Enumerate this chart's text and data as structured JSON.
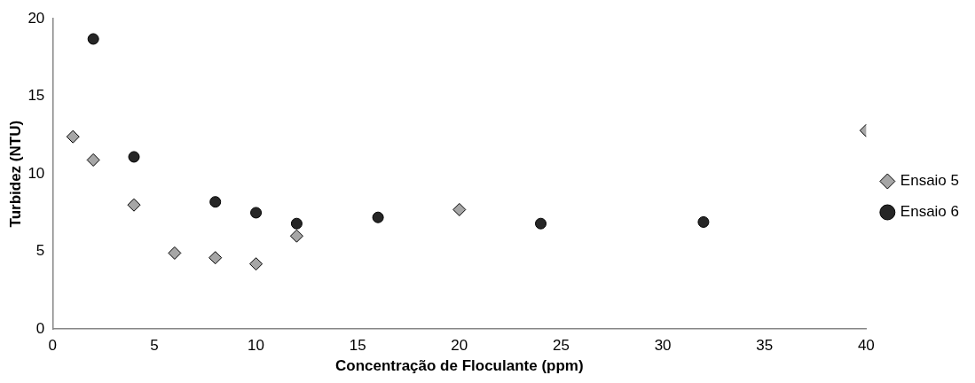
{
  "chart_data": {
    "type": "scatter",
    "xlabel": "Concentração de Floculante (ppm)",
    "ylabel": "Turbidez (NTU)",
    "xlim": [
      0,
      40
    ],
    "xticks": [
      0,
      5,
      10,
      15,
      20,
      25,
      30,
      35,
      40
    ],
    "ylim": [
      0,
      20
    ],
    "yticks": [
      0,
      5,
      10,
      15,
      20
    ],
    "grid": false,
    "legend": "right",
    "series": [
      {
        "name": "Ensaio 5",
        "color": "#a6a6a6",
        "marker": "diamond",
        "x": [
          1,
          2,
          4,
          6,
          8,
          10,
          12,
          20,
          40
        ],
        "values": [
          12.4,
          10.9,
          8.0,
          4.9,
          4.6,
          4.2,
          6.0,
          7.7,
          12.8
        ]
      },
      {
        "name": "Ensaio 6",
        "color": "#262626",
        "marker": "circle",
        "x": [
          2,
          4,
          8,
          10,
          12,
          16,
          24,
          32
        ],
        "values": [
          18.7,
          11.1,
          8.2,
          7.5,
          6.8,
          7.2,
          6.8,
          6.9
        ]
      }
    ]
  }
}
